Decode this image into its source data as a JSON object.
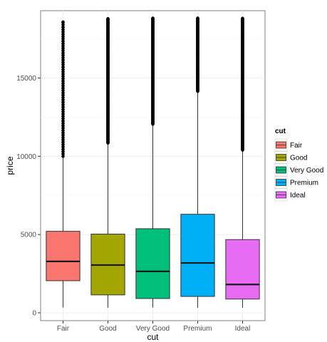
{
  "chart_data": {
    "type": "boxplot",
    "xlabel": "cut",
    "ylabel": "price",
    "ylim": [
      -500,
      19300
    ],
    "yticks": [
      0,
      5000,
      10000,
      15000
    ],
    "grid": true,
    "legend": {
      "title": "cut",
      "placement": "right"
    },
    "categories": [
      "Fair",
      "Good",
      "Very Good",
      "Premium",
      "Ideal"
    ],
    "colors": [
      "#F8766D",
      "#A3A500",
      "#00BF7D",
      "#00B0F6",
      "#E76BF3"
    ],
    "boxes": [
      {
        "category": "Fair",
        "min": 337,
        "q1": 2050,
        "median": 3282,
        "q3": 5206,
        "whisker_high": 9940,
        "outliers_from": 10000,
        "outliers_to": 18574,
        "outlier_density": "sparse"
      },
      {
        "category": "Good",
        "min": 327,
        "q1": 1145,
        "median": 3051,
        "q3": 5028,
        "whisker_high": 10850,
        "outliers_from": 10850,
        "outliers_to": 18788,
        "outlier_density": "dense"
      },
      {
        "category": "Very Good",
        "min": 336,
        "q1": 912,
        "median": 2648,
        "q3": 5373,
        "whisker_high": 12050,
        "outliers_from": 12050,
        "outliers_to": 18818,
        "outlier_density": "dense"
      },
      {
        "category": "Premium",
        "min": 326,
        "q1": 1046,
        "median": 3185,
        "q3": 6296,
        "whisker_high": 14150,
        "outliers_from": 14150,
        "outliers_to": 18823,
        "outlier_density": "dense"
      },
      {
        "category": "Ideal",
        "min": 326,
        "q1": 878,
        "median": 1810,
        "q3": 4678,
        "whisker_high": 10400,
        "outliers_from": 10400,
        "outliers_to": 18806,
        "outlier_density": "dense"
      }
    ]
  }
}
